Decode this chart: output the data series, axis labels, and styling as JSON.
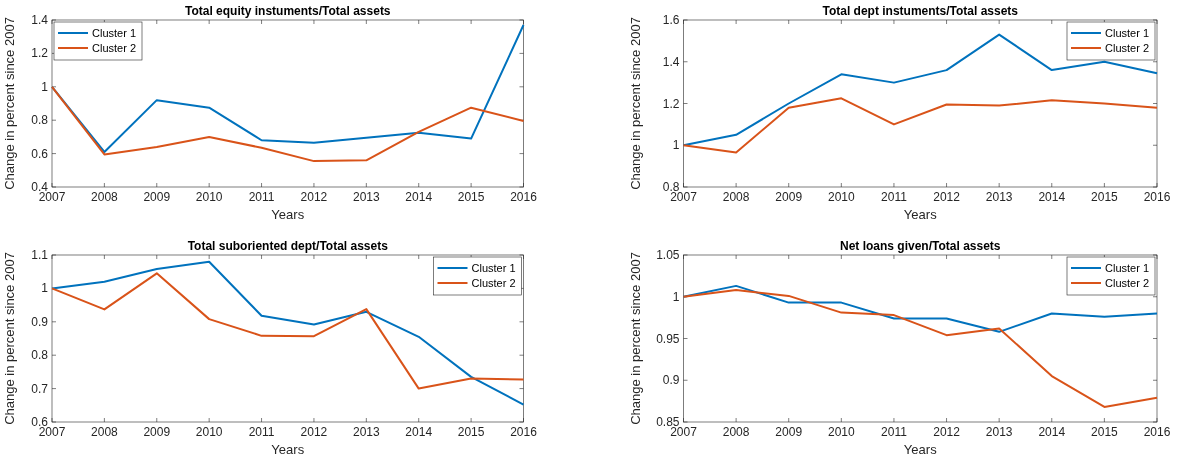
{
  "chart_data": [
    {
      "type": "line",
      "title": "Total equity instuments/Total assets",
      "xlabel": "Years",
      "ylabel": "Change in percent since 2007",
      "x": [
        2007,
        2008,
        2009,
        2010,
        2011,
        2012,
        2013,
        2014,
        2015,
        2016
      ],
      "xlim": [
        2007,
        2016
      ],
      "xticks": [
        2007,
        2008,
        2009,
        2010,
        2011,
        2012,
        2013,
        2014,
        2015,
        2016
      ],
      "ylim": [
        0.4,
        1.4
      ],
      "yticks": [
        0.4,
        0.6,
        0.8,
        1,
        1.2,
        1.4
      ],
      "legend": "top left",
      "grid": false,
      "series": [
        {
          "name": "Cluster 1",
          "color": "#0072bd",
          "values": [
            1,
            0.61,
            0.92,
            0.875,
            0.68,
            0.665,
            0.695,
            0.725,
            0.69,
            1.37
          ]
        },
        {
          "name": "Cluster 2",
          "color": "#d95319",
          "values": [
            1,
            0.595,
            0.64,
            0.7,
            0.635,
            0.555,
            0.56,
            0.73,
            0.875,
            0.795
          ]
        }
      ]
    },
    {
      "type": "line",
      "title": "Total dept instuments/Total assets",
      "xlabel": "Years",
      "ylabel": "Change in percent since 2007",
      "x": [
        2007,
        2008,
        2009,
        2010,
        2011,
        2012,
        2013,
        2014,
        2015,
        2016
      ],
      "xlim": [
        2007,
        2016
      ],
      "xticks": [
        2007,
        2008,
        2009,
        2010,
        2011,
        2012,
        2013,
        2014,
        2015,
        2016
      ],
      "ylim": [
        0.8,
        1.6
      ],
      "yticks": [
        0.8,
        1,
        1.2,
        1.4,
        1.6
      ],
      "legend": "top right",
      "grid": false,
      "series": [
        {
          "name": "Cluster 1",
          "color": "#0072bd",
          "values": [
            1,
            1.05,
            1.2,
            1.34,
            1.3,
            1.36,
            1.53,
            1.36,
            1.4,
            1.345
          ]
        },
        {
          "name": "Cluster 2",
          "color": "#d95319",
          "values": [
            1,
            0.965,
            1.18,
            1.225,
            1.1,
            1.195,
            1.19,
            1.215,
            1.2,
            1.18
          ]
        }
      ]
    },
    {
      "type": "line",
      "title": "Total suboriented dept/Total assets",
      "xlabel": "Years",
      "ylabel": "Change in percent since 2007",
      "x": [
        2007,
        2008,
        2009,
        2010,
        2011,
        2012,
        2013,
        2014,
        2015,
        2016
      ],
      "xlim": [
        2007,
        2016
      ],
      "xticks": [
        2007,
        2008,
        2009,
        2010,
        2011,
        2012,
        2013,
        2014,
        2015,
        2016
      ],
      "ylim": [
        0.6,
        1.1
      ],
      "yticks": [
        0.6,
        0.7,
        0.8,
        0.9,
        1,
        1.1
      ],
      "legend": "top right",
      "grid": false,
      "series": [
        {
          "name": "Cluster 1",
          "color": "#0072bd",
          "values": [
            1,
            1.02,
            1.058,
            1.08,
            0.918,
            0.892,
            0.93,
            0.855,
            0.735,
            0.652
          ]
        },
        {
          "name": "Cluster 2",
          "color": "#d95319",
          "values": [
            1,
            0.937,
            1.045,
            0.908,
            0.858,
            0.857,
            0.938,
            0.7,
            0.73,
            0.727
          ]
        }
      ]
    },
    {
      "type": "line",
      "title": "Net loans given/Total assets",
      "xlabel": "Years",
      "ylabel": "Change in percent since 2007",
      "x": [
        2007,
        2008,
        2009,
        2010,
        2011,
        2012,
        2013,
        2014,
        2015,
        2016
      ],
      "xlim": [
        2007,
        2016
      ],
      "xticks": [
        2007,
        2008,
        2009,
        2010,
        2011,
        2012,
        2013,
        2014,
        2015,
        2016
      ],
      "ylim": [
        0.85,
        1.05
      ],
      "yticks": [
        0.85,
        0.9,
        0.95,
        1,
        1.05
      ],
      "legend": "top right",
      "grid": false,
      "series": [
        {
          "name": "Cluster 1",
          "color": "#0072bd",
          "values": [
            1,
            1.013,
            0.993,
            0.993,
            0.974,
            0.974,
            0.958,
            0.98,
            0.976,
            0.98
          ]
        },
        {
          "name": "Cluster 2",
          "color": "#d95319",
          "values": [
            1,
            1.008,
            1.001,
            0.981,
            0.978,
            0.954,
            0.962,
            0.905,
            0.868,
            0.879
          ]
        }
      ]
    }
  ]
}
